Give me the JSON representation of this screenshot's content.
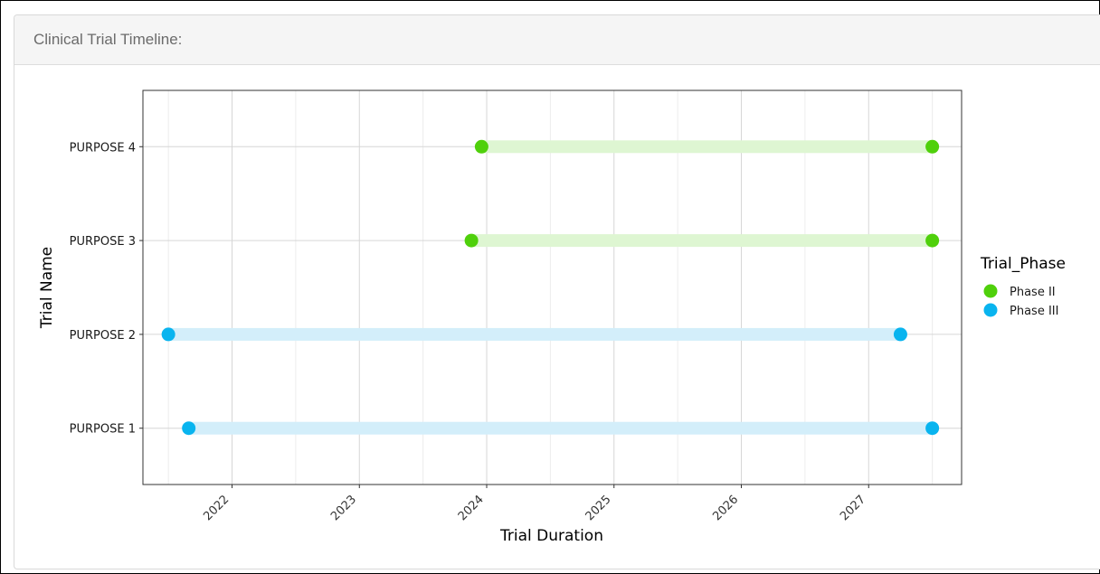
{
  "panel": {
    "title": "Clinical Trial Timeline:"
  },
  "chart_data": {
    "type": "timeline",
    "title": "",
    "xlabel": "Trial Duration",
    "ylabel": "Trial Name",
    "x_ticks": [
      "2022",
      "2023",
      "2024",
      "2025",
      "2026",
      "2027"
    ],
    "xlim": [
      2021.3,
      2027.73
    ],
    "categories": [
      "PURPOSE 1",
      "PURPOSE 2",
      "PURPOSE 3",
      "PURPOSE 4"
    ],
    "grid": true,
    "legend": {
      "title": "Trial_Phase",
      "position": "right",
      "entries": [
        {
          "name": "Phase II",
          "color": "#4fd00b"
        },
        {
          "name": "Phase III",
          "color": "#09b4ef"
        }
      ]
    },
    "series": [
      {
        "name": "Phase II",
        "color": "#4fd00b",
        "band_color": "#def6d2",
        "segments": [
          {
            "category": "PURPOSE 4",
            "start": 2023.96,
            "end": 2027.5
          },
          {
            "category": "PURPOSE 3",
            "start": 2023.88,
            "end": 2027.5
          }
        ]
      },
      {
        "name": "Phase III",
        "color": "#09b4ef",
        "band_color": "#d3eefa",
        "segments": [
          {
            "category": "PURPOSE 2",
            "start": 2021.5,
            "end": 2027.25
          },
          {
            "category": "PURPOSE 1",
            "start": 2021.66,
            "end": 2027.5
          }
        ]
      }
    ]
  }
}
